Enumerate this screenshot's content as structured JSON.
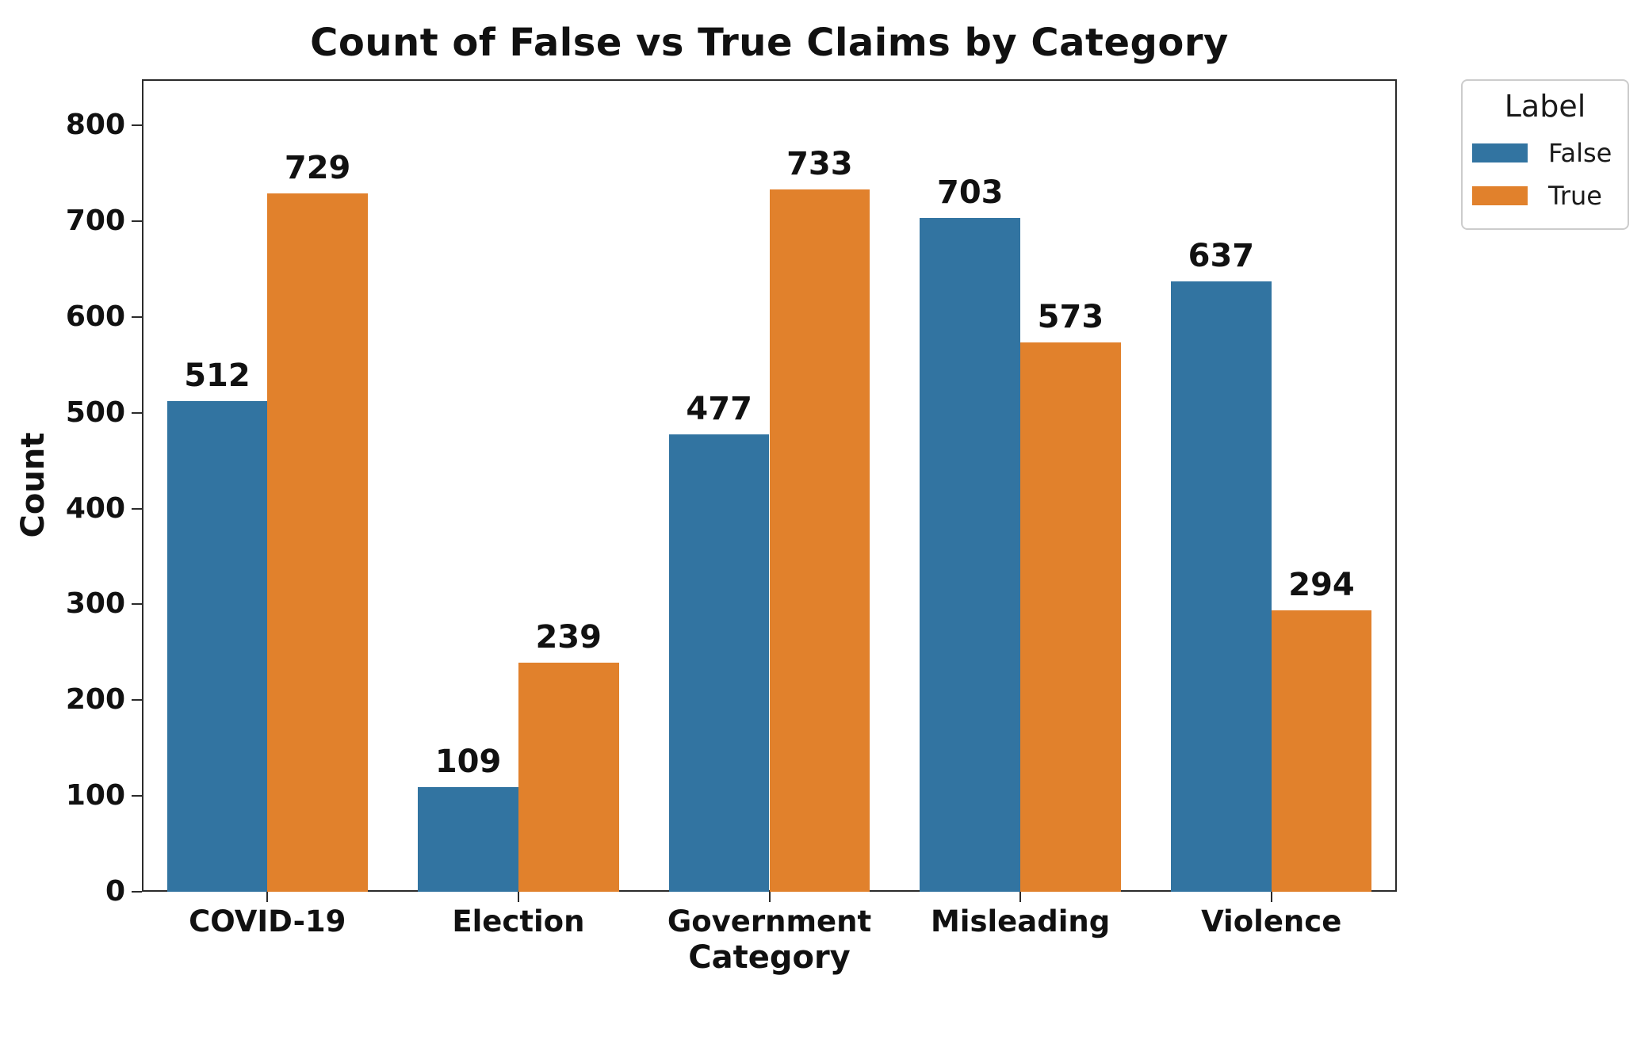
{
  "chart_data": {
    "type": "bar",
    "title": "Count of False vs True Claims by Category",
    "xlabel": "Category",
    "ylabel": "Count",
    "categories": [
      "COVID-19",
      "Election",
      "Government",
      "Misleading",
      "Violence"
    ],
    "series": [
      {
        "name": "False",
        "color": "#3274A1",
        "values": [
          512,
          109,
          477,
          703,
          637
        ]
      },
      {
        "name": "True",
        "color": "#E1812C",
        "values": [
          729,
          239,
          733,
          573,
          294
        ]
      }
    ],
    "bar_labels": true,
    "yticks": [
      0,
      100,
      200,
      300,
      400,
      500,
      600,
      700,
      800
    ],
    "ylim": [
      0,
      848
    ],
    "grid": false,
    "legend": {
      "title": "Label",
      "entries": [
        "False",
        "True"
      ],
      "position": "outside-upper-right"
    }
  },
  "colors": {
    "false_bar": "#3274A1",
    "true_bar": "#E1812C",
    "spine": "#2b2b2b",
    "text": "#111111",
    "legend_border": "#cccccc",
    "background": "#ffffff"
  }
}
